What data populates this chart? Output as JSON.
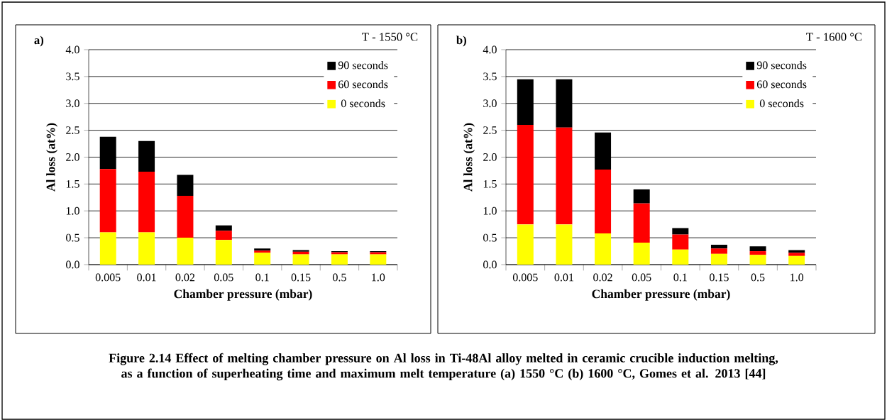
{
  "chart_data": [
    {
      "type": "bar",
      "stacked": true,
      "title": "a)",
      "subtitle": "T - 1550 °C",
      "xlabel": "Chamber pressure (mbar)",
      "ylabel": "Al loss (at%)",
      "categories": [
        "0.005",
        "0.01",
        "0.02",
        "0.05",
        "0.1",
        "0.15",
        "0.5",
        "1.0"
      ],
      "series": [
        {
          "name": "0 seconds",
          "color": "#ffff00",
          "values": [
            0.6,
            0.6,
            0.5,
            0.46,
            0.22,
            0.19,
            0.19,
            0.19
          ]
        },
        {
          "name": "60 seconds",
          "color": "#ff0000",
          "values": [
            1.18,
            1.13,
            0.78,
            0.17,
            0.04,
            0.05,
            0.04,
            0.04
          ]
        },
        {
          "name": "90 seconds",
          "color": "#000000",
          "values": [
            0.6,
            0.57,
            0.39,
            0.1,
            0.04,
            0.03,
            0.02,
            0.02
          ]
        }
      ],
      "ylim": [
        0,
        4
      ],
      "yticks": [
        {
          "value": 0,
          "label": "0.0"
        },
        0.5,
        {
          "value": 1,
          "label": "1.0"
        },
        1.5,
        {
          "value": 2,
          "label": "2.0"
        },
        2.5,
        {
          "value": 3,
          "label": "3.0"
        },
        3.5,
        {
          "value": 4,
          "label": "4.0"
        }
      ],
      "grid": "y",
      "legend": "top right",
      "annotations": [
        "Figure 2.14 Effect of melting chamber pressure on Al loss in Ti-48Al alloy melted in ceramic crucible induction melting, as a function of superheating time and maximum melt temperature (a) 1550 °C (b) 1600 °C, Gomes et al. 2013 [44]"
      ]
    },
    {
      "type": "bar",
      "stacked": true,
      "title": "b)",
      "subtitle": "T - 1600 °C",
      "xlabel": "Chamber pressure (mbar)",
      "ylabel": "Al loss (at%)",
      "categories": [
        "0.005",
        "0.01",
        "0.02",
        "0.05",
        "0.1",
        "0.15",
        "0.5",
        "1.0"
      ],
      "series": [
        {
          "name": "0 seconds",
          "color": "#ffff00",
          "values": [
            0.75,
            0.75,
            0.58,
            0.41,
            0.28,
            0.2,
            0.18,
            0.16
          ]
        },
        {
          "name": "60 seconds",
          "color": "#ff0000",
          "values": [
            1.85,
            1.8,
            1.19,
            0.73,
            0.28,
            0.1,
            0.07,
            0.06
          ]
        },
        {
          "name": "90 seconds",
          "color": "#000000",
          "values": [
            0.85,
            0.9,
            0.69,
            0.26,
            0.12,
            0.07,
            0.09,
            0.05
          ]
        }
      ],
      "ylim": [
        0,
        4
      ],
      "yticks": [
        {
          "value": 0,
          "label": "0.0"
        },
        0.5,
        {
          "value": 1,
          "label": "1.0"
        },
        1.5,
        {
          "value": 2,
          "label": "2.0"
        },
        2.5,
        {
          "value": 3,
          "label": "3.0"
        },
        3.5,
        {
          "value": 4,
          "label": "4.0"
        }
      ],
      "grid": "y",
      "legend": "top right"
    }
  ]
}
